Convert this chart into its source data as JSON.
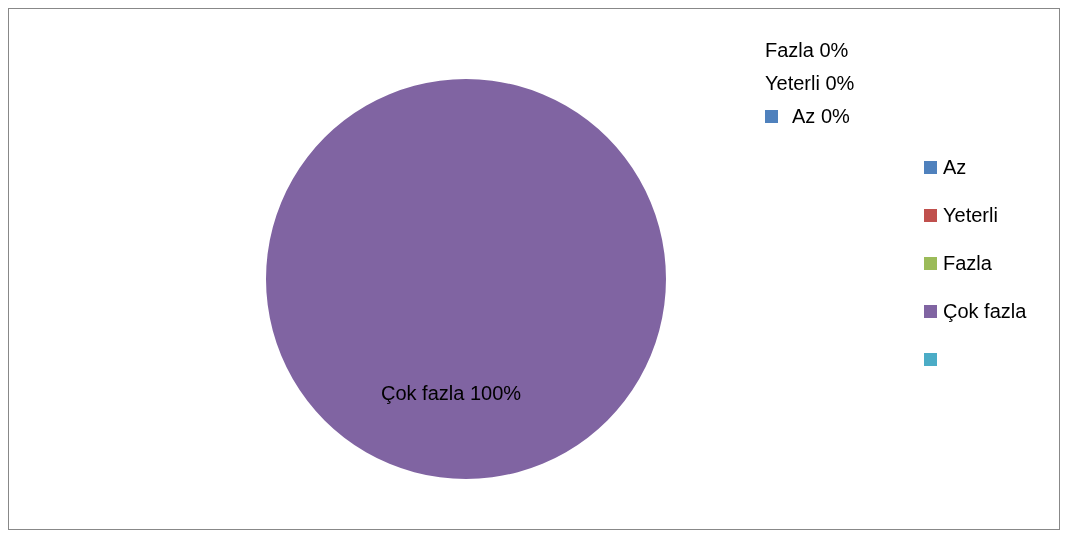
{
  "chart_data": {
    "type": "pie",
    "categories": [
      "Az",
      "Yeterli",
      "Fazla",
      "Çok fazla",
      null
    ],
    "values": [
      0,
      0,
      0,
      100,
      0
    ],
    "colors": [
      "#4f81bd",
      "#c0504d",
      "#9bbb59",
      "#8064a2",
      "#4bacc6"
    ],
    "value_labels": [
      "Az 0%",
      "Yeterli 0%",
      "Fazla 0%",
      "Çok fazla 100%",
      null
    ],
    "legend": "right"
  }
}
